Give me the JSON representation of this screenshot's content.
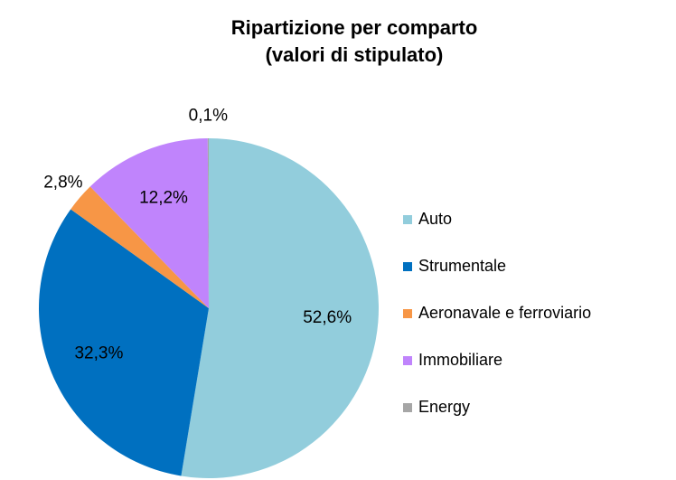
{
  "chart_data": {
    "type": "pie",
    "title": "Ripartizione per comparto",
    "subtitle": "(valori di stipulato)",
    "categories": [
      "Auto",
      "Strumentale",
      "Aeronavale e ferroviario",
      "Immobiliare",
      "Energy"
    ],
    "values": [
      52.6,
      32.3,
      2.8,
      12.2,
      0.1
    ],
    "value_labels": [
      "52,6%",
      "32,3%",
      "2,8%",
      "12,2%",
      "0,1%"
    ],
    "colors": [
      "#92cddc",
      "#0070c0",
      "#f79646",
      "#c084fc",
      "#a6a6a6"
    ],
    "legend": "right"
  }
}
